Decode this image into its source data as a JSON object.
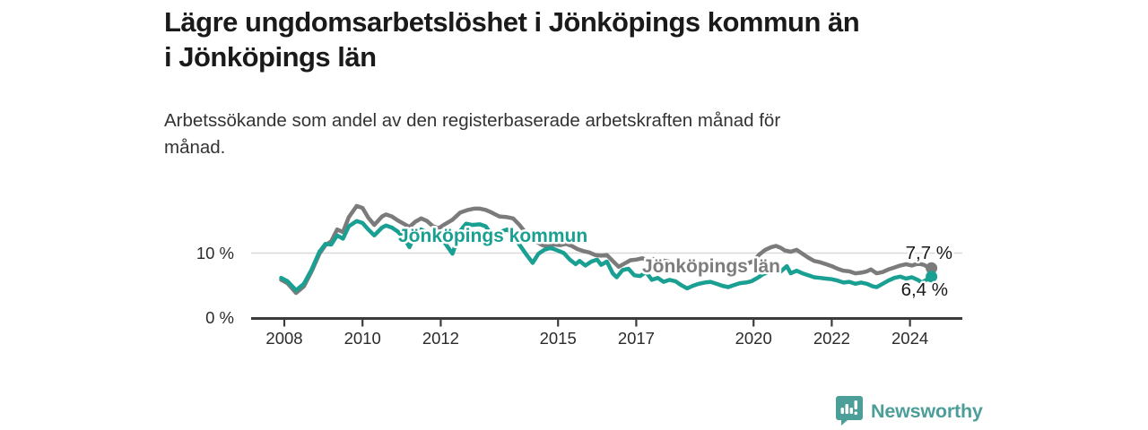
{
  "header": {
    "title": "Lägre ungdomsarbetslöshet i Jönköpings kommun än\ni Jönköpings län",
    "subtitle": "Arbetssökande som andel av den registerbaserade arbetskraften månad för\nmånad."
  },
  "footer": {
    "brand": "Newsworthy",
    "logo_icon": "bar-chart-speech-bubble-icon"
  },
  "chart_data": {
    "type": "line",
    "title": "Lägre ungdomsarbetslöshet i Jönköpings kommun än i Jönköpings län",
    "subtitle": "Arbetssökande som andel av den registerbaserade arbetskraften månad för månad.",
    "unit": "%",
    "grid": {
      "horizontal_at": [
        10
      ]
    },
    "legend": "inline-series-labels",
    "x_axis": {
      "ticks": [
        2008,
        2010,
        2012,
        2015,
        2017,
        2020,
        2022,
        2024
      ],
      "range": [
        2007.9,
        2025.3
      ]
    },
    "y_axis": {
      "ticks": [
        {
          "value": 0,
          "label": "0 %"
        },
        {
          "value": 10,
          "label": "10 %"
        }
      ],
      "range": [
        0,
        19
      ]
    },
    "series": [
      {
        "name": "Jönköpings län",
        "color": "#7b7b7b",
        "end_value": 7.7,
        "end_label": "7,7 %",
        "points": [
          [
            2007.92,
            5.9
          ],
          [
            2008.08,
            5.4
          ],
          [
            2008.3,
            3.9
          ],
          [
            2008.5,
            4.9
          ],
          [
            2008.7,
            7.2
          ],
          [
            2008.9,
            9.9
          ],
          [
            2009.05,
            11.2
          ],
          [
            2009.2,
            11.8
          ],
          [
            2009.35,
            13.6
          ],
          [
            2009.5,
            13.2
          ],
          [
            2009.65,
            15.5
          ],
          [
            2009.85,
            17.2
          ],
          [
            2010.0,
            16.9
          ],
          [
            2010.15,
            15.4
          ],
          [
            2010.3,
            14.3
          ],
          [
            2010.5,
            15.6
          ],
          [
            2010.6,
            15.9
          ],
          [
            2010.75,
            15.6
          ],
          [
            2010.9,
            15.0
          ],
          [
            2011.05,
            14.5
          ],
          [
            2011.2,
            14.0
          ],
          [
            2011.35,
            14.8
          ],
          [
            2011.5,
            15.3
          ],
          [
            2011.65,
            14.9
          ],
          [
            2011.8,
            14.1
          ],
          [
            2011.95,
            13.8
          ],
          [
            2012.1,
            14.4
          ],
          [
            2012.3,
            15.1
          ],
          [
            2012.5,
            16.2
          ],
          [
            2012.7,
            16.6
          ],
          [
            2012.85,
            16.8
          ],
          [
            2013.0,
            16.8
          ],
          [
            2013.15,
            16.6
          ],
          [
            2013.3,
            16.2
          ],
          [
            2013.5,
            15.6
          ],
          [
            2013.7,
            15.5
          ],
          [
            2013.85,
            15.3
          ],
          [
            2014.0,
            14.4
          ],
          [
            2014.2,
            12.9
          ],
          [
            2014.4,
            11.9
          ],
          [
            2014.6,
            11.2
          ],
          [
            2014.75,
            11.0
          ],
          [
            2014.9,
            11.3
          ],
          [
            2015.05,
            11.2
          ],
          [
            2015.2,
            11.4
          ],
          [
            2015.35,
            11.1
          ],
          [
            2015.5,
            10.6
          ],
          [
            2015.65,
            10.3
          ],
          [
            2015.8,
            10.1
          ],
          [
            2015.95,
            9.7
          ],
          [
            2016.1,
            9.6
          ],
          [
            2016.25,
            9.7
          ],
          [
            2016.4,
            8.8
          ],
          [
            2016.55,
            7.9
          ],
          [
            2016.7,
            8.4
          ],
          [
            2016.85,
            8.9
          ],
          [
            2017.0,
            9.0
          ],
          [
            2017.15,
            9.2
          ],
          [
            2017.3,
            8.9
          ],
          [
            2017.45,
            9.1
          ],
          [
            2017.6,
            8.9
          ],
          [
            2017.75,
            8.8
          ],
          [
            2017.9,
            8.6
          ],
          [
            2018.05,
            8.4
          ],
          [
            2018.2,
            8.1
          ],
          [
            2018.35,
            7.9
          ],
          [
            2018.5,
            8.1
          ],
          [
            2018.65,
            8.3
          ],
          [
            2018.8,
            8.4
          ],
          [
            2018.95,
            8.2
          ],
          [
            2019.1,
            8.0
          ],
          [
            2019.25,
            7.8
          ],
          [
            2019.4,
            7.7
          ],
          [
            2019.55,
            7.9
          ],
          [
            2019.7,
            8.1
          ],
          [
            2019.85,
            8.4
          ],
          [
            2020.0,
            8.8
          ],
          [
            2020.15,
            9.8
          ],
          [
            2020.3,
            10.5
          ],
          [
            2020.45,
            10.9
          ],
          [
            2020.57,
            11.1
          ],
          [
            2020.7,
            10.8
          ],
          [
            2020.8,
            10.4
          ],
          [
            2020.95,
            10.2
          ],
          [
            2021.1,
            10.5
          ],
          [
            2021.25,
            9.9
          ],
          [
            2021.4,
            9.3
          ],
          [
            2021.55,
            8.8
          ],
          [
            2021.7,
            8.6
          ],
          [
            2021.85,
            8.3
          ],
          [
            2022.0,
            8.0
          ],
          [
            2022.15,
            7.6
          ],
          [
            2022.3,
            7.3
          ],
          [
            2022.45,
            7.2
          ],
          [
            2022.6,
            6.9
          ],
          [
            2022.75,
            7.0
          ],
          [
            2022.9,
            7.2
          ],
          [
            2023.0,
            7.5
          ],
          [
            2023.15,
            6.9
          ],
          [
            2023.3,
            7.1
          ],
          [
            2023.45,
            7.5
          ],
          [
            2023.6,
            7.8
          ],
          [
            2023.75,
            8.1
          ],
          [
            2023.9,
            8.3
          ],
          [
            2024.05,
            8.1
          ],
          [
            2024.2,
            8.4
          ],
          [
            2024.35,
            8.2
          ],
          [
            2024.45,
            7.9
          ],
          [
            2024.55,
            7.7
          ]
        ]
      },
      {
        "name": "Jönköpings kommun",
        "color": "#1aa092",
        "end_value": 6.4,
        "end_label": "6,4 %",
        "points": [
          [
            2007.92,
            6.2
          ],
          [
            2008.08,
            5.7
          ],
          [
            2008.3,
            4.3
          ],
          [
            2008.5,
            5.3
          ],
          [
            2008.7,
            7.5
          ],
          [
            2008.9,
            10.2
          ],
          [
            2009.05,
            11.4
          ],
          [
            2009.2,
            11.3
          ],
          [
            2009.35,
            12.7
          ],
          [
            2009.5,
            12.2
          ],
          [
            2009.65,
            14.1
          ],
          [
            2009.85,
            14.9
          ],
          [
            2010.0,
            14.6
          ],
          [
            2010.15,
            13.6
          ],
          [
            2010.3,
            12.7
          ],
          [
            2010.5,
            13.9
          ],
          [
            2010.6,
            14.2
          ],
          [
            2010.75,
            13.9
          ],
          [
            2010.9,
            13.3
          ],
          [
            2011.05,
            12.4
          ],
          [
            2011.2,
            10.9
          ],
          [
            2011.35,
            12.9
          ],
          [
            2011.5,
            13.6
          ],
          [
            2011.65,
            13.1
          ],
          [
            2011.8,
            12.2
          ],
          [
            2011.95,
            12.5
          ],
          [
            2012.1,
            11.6
          ],
          [
            2012.3,
            9.9
          ],
          [
            2012.5,
            13.4
          ],
          [
            2012.65,
            14.5
          ],
          [
            2012.8,
            14.3
          ],
          [
            2013.0,
            14.4
          ],
          [
            2013.15,
            14.1
          ],
          [
            2013.3,
            12.8
          ],
          [
            2013.5,
            13.2
          ],
          [
            2013.7,
            13.6
          ],
          [
            2013.85,
            12.9
          ],
          [
            2014.0,
            11.4
          ],
          [
            2014.2,
            9.7
          ],
          [
            2014.35,
            8.5
          ],
          [
            2014.5,
            9.9
          ],
          [
            2014.65,
            10.5
          ],
          [
            2014.8,
            10.8
          ],
          [
            2014.95,
            10.5
          ],
          [
            2015.15,
            10.0
          ],
          [
            2015.3,
            9.0
          ],
          [
            2015.45,
            8.3
          ],
          [
            2015.55,
            8.8
          ],
          [
            2015.7,
            8.1
          ],
          [
            2015.85,
            8.7
          ],
          [
            2016.0,
            9.0
          ],
          [
            2016.1,
            8.2
          ],
          [
            2016.25,
            8.7
          ],
          [
            2016.4,
            6.9
          ],
          [
            2016.5,
            6.3
          ],
          [
            2016.65,
            7.4
          ],
          [
            2016.8,
            7.6
          ],
          [
            2016.95,
            6.6
          ],
          [
            2017.1,
            6.5
          ],
          [
            2017.25,
            7.1
          ],
          [
            2017.4,
            5.9
          ],
          [
            2017.55,
            6.2
          ],
          [
            2017.7,
            5.6
          ],
          [
            2017.85,
            5.9
          ],
          [
            2018.0,
            5.7
          ],
          [
            2018.15,
            5.1
          ],
          [
            2018.3,
            4.6
          ],
          [
            2018.45,
            5.0
          ],
          [
            2018.6,
            5.3
          ],
          [
            2018.75,
            5.5
          ],
          [
            2018.9,
            5.6
          ],
          [
            2019.05,
            5.3
          ],
          [
            2019.2,
            5.0
          ],
          [
            2019.35,
            4.8
          ],
          [
            2019.5,
            5.1
          ],
          [
            2019.65,
            5.4
          ],
          [
            2019.8,
            5.5
          ],
          [
            2019.95,
            5.7
          ],
          [
            2020.1,
            6.2
          ],
          [
            2020.25,
            6.8
          ],
          [
            2020.4,
            7.1
          ],
          [
            2020.55,
            7.3
          ],
          [
            2020.7,
            7.2
          ],
          [
            2020.85,
            8.0
          ],
          [
            2020.95,
            6.9
          ],
          [
            2021.1,
            7.3
          ],
          [
            2021.25,
            6.9
          ],
          [
            2021.4,
            6.6
          ],
          [
            2021.55,
            6.3
          ],
          [
            2021.7,
            6.2
          ],
          [
            2021.85,
            6.1
          ],
          [
            2022.0,
            6.0
          ],
          [
            2022.15,
            5.8
          ],
          [
            2022.3,
            5.5
          ],
          [
            2022.45,
            5.6
          ],
          [
            2022.6,
            5.3
          ],
          [
            2022.75,
            5.5
          ],
          [
            2022.9,
            5.3
          ],
          [
            2023.05,
            4.9
          ],
          [
            2023.15,
            4.8
          ],
          [
            2023.3,
            5.3
          ],
          [
            2023.45,
            5.8
          ],
          [
            2023.6,
            6.2
          ],
          [
            2023.75,
            6.4
          ],
          [
            2023.9,
            6.1
          ],
          [
            2024.05,
            6.3
          ],
          [
            2024.2,
            5.9
          ],
          [
            2024.3,
            5.5
          ],
          [
            2024.45,
            6.0
          ],
          [
            2024.55,
            6.4
          ]
        ]
      }
    ]
  }
}
